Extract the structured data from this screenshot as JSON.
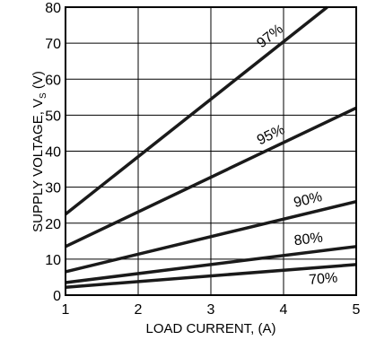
{
  "chart_data": {
    "type": "line",
    "title": "",
    "xlabel": "LOAD CURRENT, (A)",
    "ylabel_main": "SUPPLY VOLTAGE, V",
    "ylabel_sub": "S",
    "ylabel_unit": " (V)",
    "xlim": [
      1,
      5
    ],
    "ylim": [
      0,
      80
    ],
    "x_ticks": [
      1,
      2,
      3,
      4,
      5
    ],
    "y_ticks": [
      0,
      10,
      20,
      30,
      40,
      50,
      60,
      70,
      80
    ],
    "x_tick_labels": [
      "1",
      "2",
      "3",
      "4",
      "5"
    ],
    "y_tick_labels": [
      "0",
      "10",
      "20",
      "30",
      "40",
      "50",
      "60",
      "70",
      "80"
    ],
    "grid": true,
    "series": [
      {
        "name": "97%",
        "x": [
          1,
          4.6
        ],
        "y": [
          22.5,
          80
        ]
      },
      {
        "name": "95%",
        "x": [
          1,
          5
        ],
        "y": [
          13.5,
          52
        ]
      },
      {
        "name": "90%",
        "x": [
          1,
          5
        ],
        "y": [
          6.5,
          26
        ]
      },
      {
        "name": "80%",
        "x": [
          1,
          5
        ],
        "y": [
          3.5,
          13.5
        ]
      },
      {
        "name": "70%",
        "x": [
          1,
          5
        ],
        "y": [
          2.2,
          8.5
        ]
      }
    ]
  }
}
